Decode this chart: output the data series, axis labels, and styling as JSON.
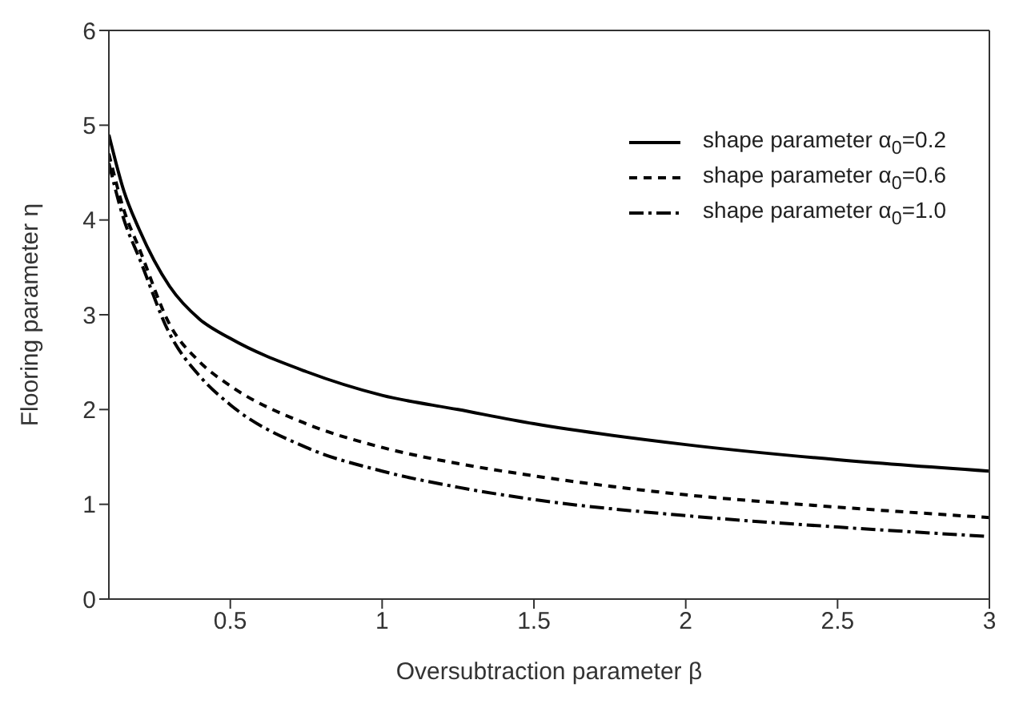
{
  "chart_data": {
    "type": "line",
    "xlabel": "Oversubtraction parameter β",
    "ylabel": "Flooring parameter η",
    "xlim": [
      0.1,
      3
    ],
    "xticks": [
      0.5,
      1,
      1.5,
      2,
      2.5,
      3
    ],
    "ylim": [
      0,
      6
    ],
    "yticks": [
      0,
      1,
      2,
      3,
      4,
      5,
      6
    ],
    "legend": "top right",
    "marker": "none",
    "series": [
      {
        "name": "shape parameter α$_{0}$=0.2",
        "color": "#000000",
        "line_style": "solid",
        "x": [
          0.1,
          0.15,
          0.2,
          0.3,
          0.4,
          0.5,
          0.75,
          1,
          1.25,
          1.5,
          2,
          2.5,
          3
        ],
        "values": [
          4.9,
          4.3,
          3.9,
          3.3,
          2.95,
          2.75,
          2.4,
          2.15,
          2,
          1.85,
          1.63,
          1.47,
          1.35
        ]
      },
      {
        "name": "shape parameter α$_{0}$=0.6",
        "color": "#000000",
        "line_style": "dashed",
        "x": [
          0.1,
          0.15,
          0.2,
          0.3,
          0.4,
          0.5,
          0.75,
          1,
          1.25,
          1.5,
          2,
          2.5,
          3
        ],
        "values": [
          4.7,
          4.1,
          3.7,
          2.9,
          2.5,
          2.25,
          1.85,
          1.6,
          1.43,
          1.3,
          1.1,
          0.97,
          0.86
        ]
      },
      {
        "name": "shape parameter α$_{0}$=1.0",
        "color": "#000000",
        "line_style": "dashdot",
        "x": [
          0.1,
          0.15,
          0.2,
          0.3,
          0.4,
          0.5,
          0.75,
          1,
          1.25,
          1.5,
          2,
          2.5,
          3
        ],
        "values": [
          4.6,
          4,
          3.6,
          2.8,
          2.35,
          2.05,
          1.6,
          1.35,
          1.18,
          1.05,
          0.88,
          0.76,
          0.66
        ]
      }
    ]
  }
}
